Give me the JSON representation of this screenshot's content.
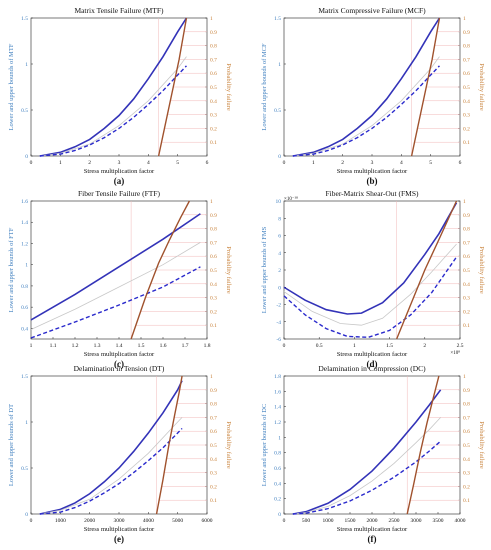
{
  "figure": {
    "background": "#ffffff"
  },
  "style": {
    "upper_color": "#3333b8",
    "lower_color": "#2a2acc",
    "mid_color": "#c8c8c8",
    "prob_color": "#a0522d",
    "left_axis_color": "#3f7fbf",
    "right_axis_color": "#c8813a",
    "prob_ref_color": "#f2b8b8"
  },
  "chart_data": [
    {
      "type": "line",
      "title": "Matrix Tensile Failure (MTF)",
      "panel_label": "(a)",
      "xlabel": "Stress multiplication factor",
      "ylabel": "Lower and upper bounds of MTF",
      "y2label": "Probability failure",
      "xlim": [
        0,
        6
      ],
      "xticks": [
        0,
        1,
        2,
        3,
        4,
        5,
        6
      ],
      "ylim": [
        0,
        1.5
      ],
      "yticks": [
        0,
        0.5,
        1,
        1.5
      ],
      "y2lim": [
        0,
        1
      ],
      "y2ticks": [
        0.1,
        0.2,
        0.3,
        0.4,
        0.5,
        0.6,
        0.7,
        0.8,
        0.9,
        1
      ],
      "series": [
        {
          "role": "upper",
          "x": [
            0.3,
            1,
            1.5,
            2,
            2.5,
            3,
            3.5,
            4,
            4.5,
            5,
            5.3
          ],
          "y": [
            0,
            0.04,
            0.1,
            0.18,
            0.3,
            0.44,
            0.62,
            0.84,
            1.08,
            1.35,
            1.5
          ]
        },
        {
          "role": "mid",
          "x": [
            0.3,
            1,
            2,
            3,
            4,
            5,
            5.3
          ],
          "y": [
            0,
            0.03,
            0.13,
            0.33,
            0.6,
            0.95,
            1.08
          ]
        },
        {
          "role": "lower",
          "x": [
            0.3,
            1,
            1.5,
            2,
            2.5,
            3,
            3.5,
            4,
            4.5,
            5,
            5.3
          ],
          "y": [
            0,
            0.02,
            0.06,
            0.12,
            0.2,
            0.3,
            0.42,
            0.56,
            0.71,
            0.88,
            0.98
          ]
        },
        {
          "role": "probability",
          "axis": "right",
          "x": [
            4.35,
            4.6,
            4.85,
            5.05,
            5.2,
            5.3
          ],
          "y": [
            0,
            0.25,
            0.5,
            0.7,
            0.88,
            1.0
          ]
        }
      ]
    },
    {
      "type": "line",
      "title": "Matrix Compressive Failure (MCF)",
      "panel_label": "(b)",
      "xlabel": "Stress multiplication factor",
      "ylabel": "Lower and upper bounds of MCF",
      "y2label": "Probability failure",
      "xlim": [
        0,
        6
      ],
      "xticks": [
        0,
        1,
        2,
        3,
        4,
        5,
        6
      ],
      "ylim": [
        0,
        1.5
      ],
      "yticks": [
        0,
        0.5,
        1,
        1.5
      ],
      "y2lim": [
        0,
        1
      ],
      "y2ticks": [
        0.1,
        0.2,
        0.3,
        0.4,
        0.5,
        0.6,
        0.7,
        0.8,
        0.9,
        1
      ],
      "series": [
        {
          "role": "upper",
          "x": [
            0.3,
            1,
            1.5,
            2,
            2.5,
            3,
            3.5,
            4,
            4.5,
            5,
            5.3
          ],
          "y": [
            0,
            0.04,
            0.1,
            0.18,
            0.3,
            0.44,
            0.62,
            0.84,
            1.08,
            1.35,
            1.5
          ]
        },
        {
          "role": "mid",
          "x": [
            0.3,
            1,
            2,
            3,
            4,
            5,
            5.3
          ],
          "y": [
            0,
            0.03,
            0.13,
            0.33,
            0.6,
            0.95,
            1.08
          ]
        },
        {
          "role": "lower",
          "x": [
            0.3,
            1,
            1.5,
            2,
            2.5,
            3,
            3.5,
            4,
            4.5,
            5,
            5.3
          ],
          "y": [
            0,
            0.02,
            0.06,
            0.12,
            0.2,
            0.3,
            0.42,
            0.56,
            0.71,
            0.88,
            0.98
          ]
        },
        {
          "role": "probability",
          "axis": "right",
          "x": [
            4.35,
            4.6,
            4.85,
            5.05,
            5.2,
            5.3
          ],
          "y": [
            0,
            0.25,
            0.5,
            0.7,
            0.88,
            1.0
          ]
        }
      ]
    },
    {
      "type": "line",
      "title": "Fiber Tensile Failure (FTF)",
      "panel_label": "(c)",
      "xlabel": "Stress multiplication factor",
      "ylabel": "Lower and upper bounds of FTF",
      "y2label": "Probability failure",
      "xlim": [
        1,
        1.8
      ],
      "xticks": [
        1,
        1.1,
        1.2,
        1.3,
        1.4,
        1.5,
        1.6,
        1.7,
        1.8
      ],
      "ylim": [
        0.3,
        1.6
      ],
      "yticks": [
        0.4,
        0.6,
        0.8,
        1,
        1.2,
        1.4,
        1.6
      ],
      "y2lim": [
        0,
        1
      ],
      "y2ticks": [
        0.1,
        0.2,
        0.3,
        0.4,
        0.5,
        0.6,
        0.7,
        0.8,
        0.9,
        1
      ],
      "series": [
        {
          "role": "upper",
          "x": [
            1,
            1.2,
            1.4,
            1.6,
            1.77
          ],
          "y": [
            0.48,
            0.72,
            0.98,
            1.24,
            1.48
          ]
        },
        {
          "role": "mid",
          "x": [
            1,
            1.2,
            1.4,
            1.6,
            1.77
          ],
          "y": [
            0.39,
            0.58,
            0.79,
            1.0,
            1.21
          ]
        },
        {
          "role": "lower",
          "x": [
            1,
            1.2,
            1.4,
            1.6,
            1.77
          ],
          "y": [
            0.31,
            0.46,
            0.62,
            0.79,
            0.98
          ]
        },
        {
          "role": "probability",
          "axis": "right",
          "x": [
            1.455,
            1.52,
            1.58,
            1.63,
            1.68,
            1.72
          ],
          "y": [
            0,
            0.3,
            0.55,
            0.72,
            0.88,
            1.0
          ]
        }
      ]
    },
    {
      "type": "line",
      "title": "Fiber-Matrix Shear-Out (FMS)",
      "panel_label": "(d)",
      "xlabel": "Stress multiplication factor",
      "ylabel": "Lower and upper bounds of FMS",
      "y2label": "Probability failure",
      "x_exponent": "×10⁸",
      "y_exponent": "×10⁻¹⁰",
      "xlim": [
        0,
        2.5
      ],
      "xticks": [
        0,
        0.5,
        1,
        1.5,
        2,
        2.5
      ],
      "ylim": [
        -6,
        10
      ],
      "yticks": [
        -6,
        -4,
        -2,
        0,
        2,
        4,
        6,
        8,
        10
      ],
      "y2lim": [
        0,
        1
      ],
      "y2ticks": [
        0.1,
        0.2,
        0.3,
        0.4,
        0.5,
        0.6,
        0.7,
        0.8,
        0.9,
        1
      ],
      "series": [
        {
          "role": "upper",
          "x": [
            0,
            0.3,
            0.6,
            0.9,
            1.1,
            1.4,
            1.7,
            2.0,
            2.2,
            2.45
          ],
          "y": [
            0,
            -1.5,
            -2.6,
            -3.1,
            -3.0,
            -1.8,
            0.5,
            3.8,
            6.2,
            9.8
          ]
        },
        {
          "role": "mid",
          "x": [
            0,
            0.4,
            0.8,
            1.1,
            1.4,
            1.8,
            2.1,
            2.45
          ],
          "y": [
            -0.5,
            -2.8,
            -4.2,
            -4.4,
            -3.6,
            -0.8,
            1.8,
            5.0
          ]
        },
        {
          "role": "lower",
          "x": [
            0,
            0.3,
            0.6,
            0.9,
            1.2,
            1.5,
            1.8,
            2.1,
            2.45
          ],
          "y": [
            -1.0,
            -3.2,
            -4.8,
            -5.7,
            -5.8,
            -5.0,
            -3.2,
            -0.6,
            3.5
          ]
        },
        {
          "role": "probability",
          "axis": "right",
          "x": [
            1.6,
            1.8,
            2.0,
            2.2,
            2.45
          ],
          "y": [
            0,
            0.25,
            0.5,
            0.72,
            1.0
          ]
        }
      ]
    },
    {
      "type": "line",
      "title": "Delamination in Tension (DT)",
      "panel_label": "(e)",
      "xlabel": "Stress multiplication factor",
      "ylabel": "Lower and upper bounds of DT",
      "y2label": "Probability failure",
      "xlim": [
        0,
        6000
      ],
      "xticks": [
        0,
        1000,
        2000,
        3000,
        4000,
        5000,
        6000
      ],
      "ylim": [
        0,
        1.5
      ],
      "yticks": [
        0,
        0.5,
        1,
        1.5
      ],
      "y2lim": [
        0,
        1
      ],
      "y2ticks": [
        0.1,
        0.2,
        0.3,
        0.4,
        0.5,
        0.6,
        0.7,
        0.8,
        0.9,
        1
      ],
      "series": [
        {
          "role": "upper",
          "x": [
            300,
            1000,
            1500,
            2000,
            2500,
            3000,
            3500,
            4000,
            4500,
            5000,
            5150
          ],
          "y": [
            0,
            0.05,
            0.12,
            0.22,
            0.35,
            0.5,
            0.68,
            0.88,
            1.1,
            1.35,
            1.45
          ]
        },
        {
          "role": "mid",
          "x": [
            300,
            1000,
            2000,
            3000,
            4000,
            5000,
            5150
          ],
          "y": [
            0,
            0.04,
            0.16,
            0.38,
            0.66,
            1.0,
            1.05
          ]
        },
        {
          "role": "lower",
          "x": [
            300,
            1000,
            1500,
            2000,
            2500,
            3000,
            3500,
            4000,
            4500,
            5000,
            5150
          ],
          "y": [
            0,
            0.02,
            0.07,
            0.14,
            0.23,
            0.33,
            0.45,
            0.58,
            0.72,
            0.88,
            0.93
          ]
        },
        {
          "role": "probability",
          "axis": "right",
          "x": [
            4280,
            4500,
            4700,
            4900,
            5050,
            5150
          ],
          "y": [
            0,
            0.25,
            0.5,
            0.72,
            0.88,
            1.0
          ]
        }
      ]
    },
    {
      "type": "line",
      "title": "Delamination in Compression (DC)",
      "panel_label": "(f)",
      "xlabel": "Stress multiplication factor",
      "ylabel": "Lower and upper bounds of DC",
      "y2label": "Probability failure",
      "xlim": [
        0,
        4000
      ],
      "xticks": [
        0,
        500,
        1000,
        1500,
        2000,
        2500,
        3000,
        3500,
        4000
      ],
      "ylim": [
        0,
        1.8
      ],
      "yticks": [
        0,
        0.2,
        0.4,
        0.6,
        0.8,
        1,
        1.2,
        1.4,
        1.6,
        1.8
      ],
      "y2lim": [
        0,
        1
      ],
      "y2ticks": [
        0.1,
        0.2,
        0.3,
        0.4,
        0.5,
        0.6,
        0.7,
        0.8,
        0.9,
        1
      ],
      "series": [
        {
          "role": "upper",
          "x": [
            200,
            500,
            1000,
            1500,
            2000,
            2500,
            3000,
            3300,
            3560
          ],
          "y": [
            0,
            0.03,
            0.14,
            0.32,
            0.56,
            0.86,
            1.2,
            1.42,
            1.62
          ]
        },
        {
          "role": "mid",
          "x": [
            200,
            500,
            1000,
            1500,
            2000,
            2500,
            3000,
            3300,
            3560
          ],
          "y": [
            0,
            0.02,
            0.1,
            0.24,
            0.43,
            0.66,
            0.93,
            1.1,
            1.26
          ]
        },
        {
          "role": "lower",
          "x": [
            200,
            500,
            1000,
            1500,
            2000,
            2500,
            3000,
            3300,
            3560
          ],
          "y": [
            0,
            0.01,
            0.07,
            0.17,
            0.31,
            0.48,
            0.68,
            0.82,
            0.95
          ]
        },
        {
          "role": "probability",
          "axis": "right",
          "x": [
            2800,
            2950,
            3100,
            3250,
            3400,
            3520
          ],
          "y": [
            0,
            0.22,
            0.45,
            0.66,
            0.85,
            1.0
          ]
        }
      ]
    }
  ]
}
